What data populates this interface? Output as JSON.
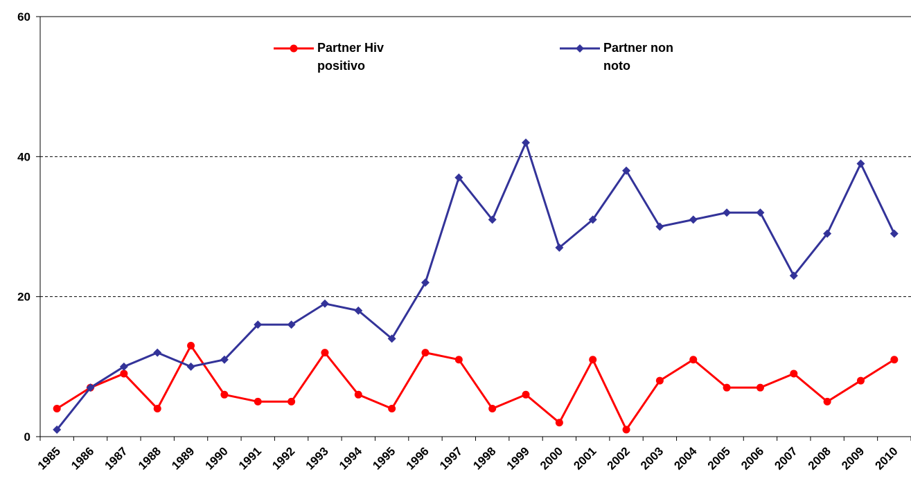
{
  "chart_data": {
    "type": "line",
    "categories": [
      "1985",
      "1986",
      "1987",
      "1988",
      "1989",
      "1990",
      "1991",
      "1992",
      "1993",
      "1994",
      "1995",
      "1996",
      "1997",
      "1998",
      "1999",
      "2000",
      "2001",
      "2002",
      "2003",
      "2004",
      "2005",
      "2006",
      "2007",
      "2008",
      "2009",
      "2010"
    ],
    "series": [
      {
        "name": "Partner Hiv positivo",
        "color": "#ff0000",
        "marker": "circle",
        "values": [
          4,
          7,
          9,
          4,
          13,
          6,
          5,
          5,
          12,
          6,
          4,
          12,
          11,
          4,
          6,
          2,
          11,
          1,
          8,
          11,
          7,
          7,
          9,
          5,
          8,
          11
        ]
      },
      {
        "name": "Partner non noto",
        "color": "#333399",
        "marker": "diamond",
        "values": [
          1,
          7,
          10,
          12,
          10,
          11,
          16,
          16,
          19,
          18,
          14,
          22,
          37,
          31,
          42,
          27,
          31,
          38,
          30,
          31,
          32,
          32,
          23,
          29,
          39,
          29
        ]
      }
    ],
    "ylim": [
      0,
      60
    ],
    "yticks": [
      0,
      20,
      40,
      60
    ],
    "grid": true
  }
}
